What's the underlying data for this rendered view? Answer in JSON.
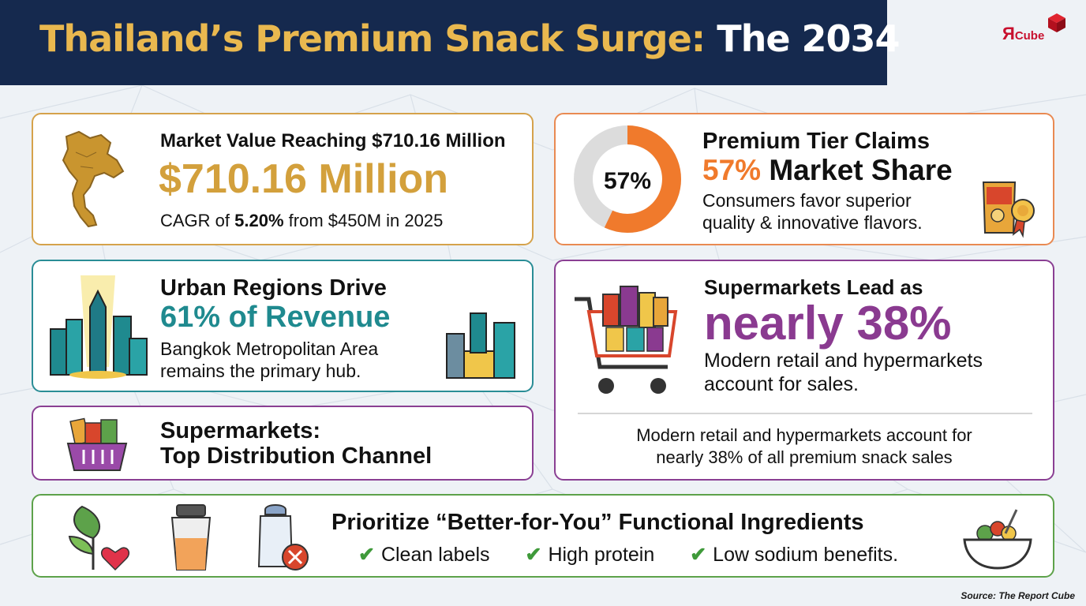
{
  "header": {
    "title_part1": "Thailand’s Premium Snack Surge:",
    "title_part2": "The 2034"
  },
  "logo": {
    "mark": "Я",
    "text": "Cube"
  },
  "market_value": {
    "heading": "Market Value Reaching $710.16 Million",
    "big_value": "$710.16 Million",
    "cagr_prefix": "CAGR of ",
    "cagr_value": "5.20%",
    "cagr_suffix": " from $450M in 2025",
    "icon": "thailand-map-icon"
  },
  "premium_tier": {
    "donut_percent": 57,
    "donut_label": "57%",
    "heading": "Premium Tier Claims",
    "share_percent": "57%",
    "share_label": " Market Share",
    "body_line1": "Consumers favor superior",
    "body_line2": "quality & innovative flavors.",
    "colors": {
      "fill": "#f07a2c",
      "track": "#dcdcdc"
    },
    "icon": "snack-bag-award-icon"
  },
  "urban": {
    "heading": "Urban Regions Drive",
    "highlight": "61% of Revenue",
    "body_line1": "Bangkok Metropolitan Area",
    "body_line2": "remains the primary hub.",
    "icon_left": "city-skyline-spotlight-icon",
    "icon_right": "city-buildings-icon"
  },
  "supermarkets_lead": {
    "heading": "Supermarkets Lead as",
    "highlight": "nearly 38%",
    "body_line1": "Modern retail and hypermarkets",
    "body_line2": "account for sales.",
    "footer_line1": "Modern retail and hypermarkets account for",
    "footer_line2": "nearly 38% of all premium snack sales",
    "icon": "shopping-cart-icon"
  },
  "distribution": {
    "line1": "Supermarkets:",
    "line2": "Top Distribution Channel",
    "icon": "snack-basket-icon"
  },
  "ingredients": {
    "heading": "Prioritize “Better-for-You” Functional Ingredients",
    "check_mark": "✔",
    "bullets": [
      "Clean labels",
      "High protein",
      "Low sodium benefits."
    ],
    "icons": [
      "leaf-heart-icon",
      "protein-shaker-icon",
      "salt-shaker-no-icon",
      "salad-bowl-icon"
    ]
  },
  "source": "Source: The Report Cube",
  "colors": {
    "navy": "#15294e",
    "gold": "#e9b84f",
    "gold_text": "#d3a03c",
    "orange": "#f07a2c",
    "teal": "#1f8a8f",
    "purple": "#8a3a90",
    "green": "#3f9a3a"
  }
}
